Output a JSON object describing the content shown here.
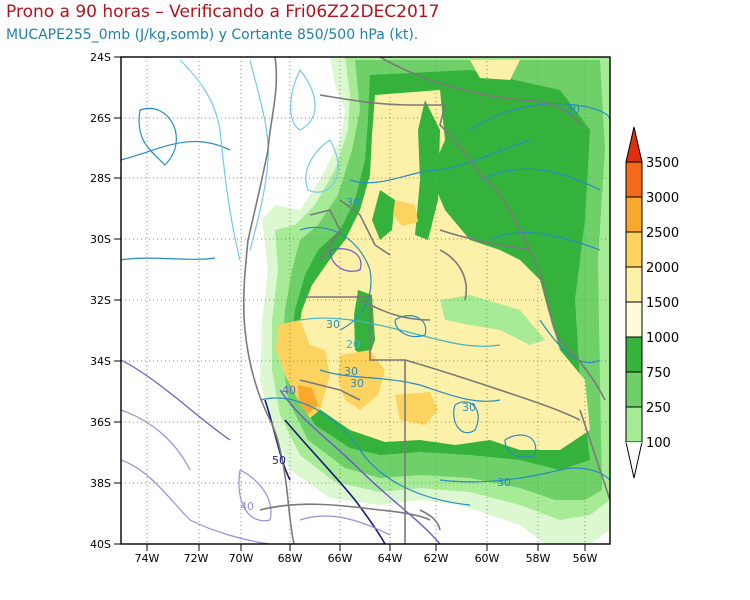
{
  "title_line1": "Prono a 90 horas – Verificando a Fri06Z22DEC2017",
  "title_line2": "MUCAPE255_0mb (J/kg,somb) y Cortante 850/500 hPa (kt).",
  "map": {
    "lat_ticks": [
      "24S",
      "26S",
      "28S",
      "30S",
      "32S",
      "34S",
      "36S",
      "38S",
      "40S"
    ],
    "lon_ticks": [
      "74W",
      "72W",
      "70W",
      "68W",
      "66W",
      "64W",
      "62W",
      "60W",
      "58W",
      "56W"
    ],
    "contour_labels": [
      {
        "text": "30",
        "color": "#2b8cbe"
      },
      {
        "text": "30",
        "color": "#2b8cbe"
      },
      {
        "text": "30",
        "color": "#2b8cbe"
      },
      {
        "text": "20",
        "color": "#41b6c4"
      },
      {
        "text": "30",
        "color": "#2b8cbe"
      },
      {
        "text": "30",
        "color": "#2b8cbe"
      },
      {
        "text": "40",
        "color": "#6a5acd"
      },
      {
        "text": "50",
        "color": "#1a1a7a"
      },
      {
        "text": "40",
        "color": "#9b8fd6"
      },
      {
        "text": "30",
        "color": "#2b8cbe"
      }
    ]
  },
  "legend": {
    "labels": [
      "3500",
      "3000",
      "2500",
      "2000",
      "1500",
      "1000",
      "750",
      "250",
      "100"
    ],
    "colors": [
      "#e03010",
      "#f46a1a",
      "#f9a82b",
      "#fbd35e",
      "#fdf0a8",
      "#35b23c",
      "#6fd06a",
      "#a7eb97",
      "#dcf8d0",
      "#ffffff"
    ]
  }
}
